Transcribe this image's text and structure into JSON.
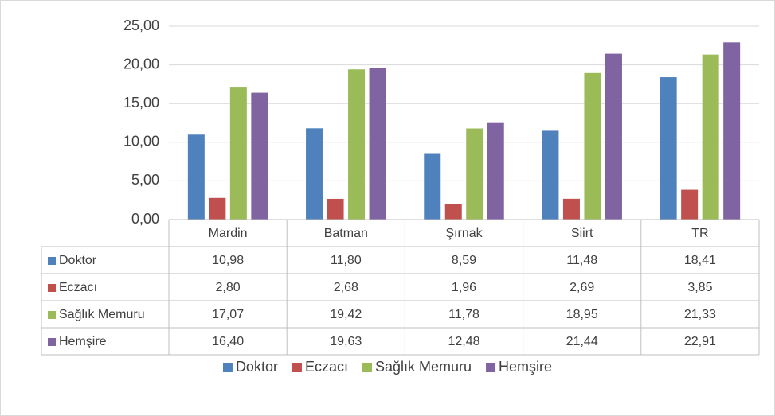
{
  "chart_data": {
    "type": "bar",
    "categories": [
      "Mardin",
      "Batman",
      "Şırnak",
      "Siirt",
      "TR"
    ],
    "series": [
      {
        "name": "Doktor",
        "color": "#4f81bd",
        "values": [
          10.98,
          11.8,
          8.59,
          11.48,
          18.41
        ],
        "value_labels": [
          "10,98",
          "11,80",
          "8,59",
          "11,48",
          "18,41"
        ]
      },
      {
        "name": "Eczacı",
        "color": "#c0504d",
        "values": [
          2.8,
          2.68,
          1.96,
          2.69,
          3.85
        ],
        "value_labels": [
          "2,80",
          "2,68",
          "1,96",
          "2,69",
          "3,85"
        ]
      },
      {
        "name": "Sağlık Memuru",
        "color": "#9bbb59",
        "values": [
          17.07,
          19.42,
          11.78,
          18.95,
          21.33
        ],
        "value_labels": [
          "17,07",
          "19,42",
          "11,78",
          "18,95",
          "21,33"
        ]
      },
      {
        "name": "Hemşire",
        "color": "#8064a2",
        "values": [
          16.4,
          19.63,
          12.48,
          21.44,
          22.91
        ],
        "value_labels": [
          "16,40",
          "19,63",
          "12,48",
          "21,44",
          "22,91"
        ]
      }
    ],
    "ylim": [
      0,
      25
    ],
    "yticks": [
      {
        "value": 0,
        "label": "0,00"
      },
      {
        "value": 5,
        "label": "5,00"
      },
      {
        "value": 10,
        "label": "10,00"
      },
      {
        "value": 15,
        "label": "15,00"
      },
      {
        "value": 20,
        "label": "20,00"
      },
      {
        "value": 25,
        "label": "25,00"
      }
    ],
    "grid": true,
    "legend": "bottom"
  }
}
